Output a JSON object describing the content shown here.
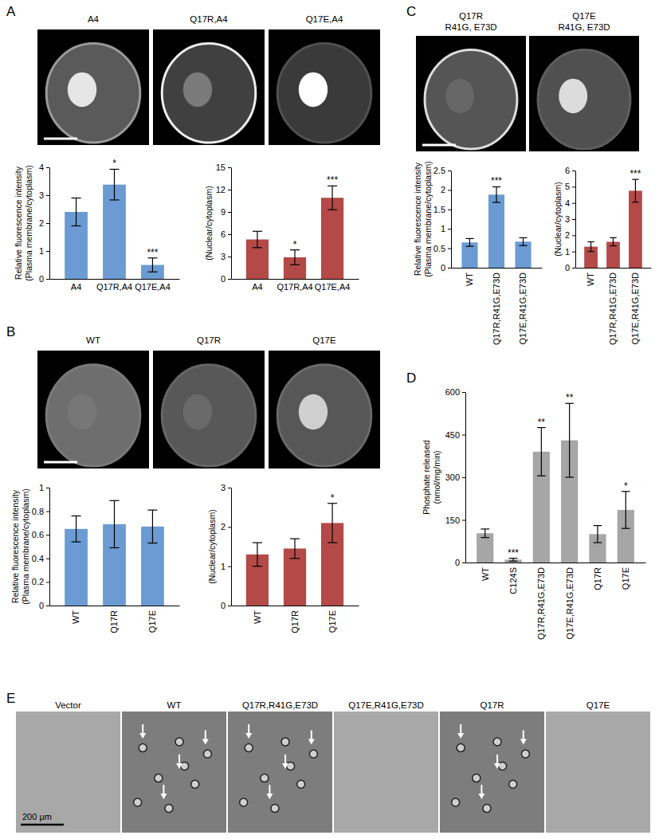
{
  "panels": [
    {
      "label": "A",
      "images": [
        "A4",
        "Q17R,A4",
        "Q17E,A4"
      ]
    },
    {
      "label": "B",
      "images": [
        "WT",
        "Q17R",
        "Q17E"
      ]
    },
    {
      "label": "C",
      "images": [
        [
          "Q17R",
          "R41G, E73D"
        ],
        [
          "Q17E",
          "R41G, E73D"
        ]
      ]
    },
    {
      "label": "D"
    },
    {
      "label": "E",
      "images": [
        "Vector",
        "WT",
        "Q17R,R41G,E73D",
        "Q17E,R41G,E73D",
        "Q17R",
        "Q17E"
      ],
      "scale_bar": "200 μm"
    }
  ],
  "chart_data": [
    {
      "type": "bar",
      "ylabel": [
        "Relative fluorescence intensity",
        "(Plasma membrane/cytoplasm)"
      ],
      "categories": [
        "A4",
        "Q17R,A4",
        "Q17E,A4"
      ],
      "values": [
        2.4,
        3.38,
        0.5
      ],
      "errors": [
        0.5,
        0.55,
        0.25
      ],
      "significance": [
        null,
        "*",
        "***"
      ],
      "color": "#6b9bd2",
      "ylim": [
        0,
        4
      ],
      "yticks": [
        0,
        1,
        2,
        3,
        4
      ]
    },
    {
      "type": "bar",
      "ylabel": [
        "(Nuclear/cytoplasm)"
      ],
      "categories": [
        "A4",
        "Q17R,A4",
        "Q17E,A4"
      ],
      "values": [
        5.3,
        2.9,
        10.9
      ],
      "errors": [
        1.1,
        1.0,
        1.6
      ],
      "significance": [
        null,
        "*",
        "***"
      ],
      "color": "#b34a47",
      "ylim": [
        0,
        15
      ],
      "yticks": [
        0,
        3,
        6,
        9,
        12,
        15
      ]
    },
    {
      "type": "bar",
      "ylabel": [
        "Relative fluorescence intensity",
        "(Plasma membrane/cytoplasm)"
      ],
      "categories": [
        "WT",
        "Q17R",
        "Q17E"
      ],
      "values": [
        0.65,
        0.69,
        0.67
      ],
      "errors": [
        0.11,
        0.2,
        0.14
      ],
      "significance": [
        null,
        null,
        null
      ],
      "color": "#6b9bd2",
      "ylim": [
        0,
        1
      ],
      "yticks": [
        0,
        0.2,
        0.4,
        0.6,
        0.8,
        1
      ]
    },
    {
      "type": "bar",
      "ylabel": [
        "(Nuclear/cytoplasm)"
      ],
      "categories": [
        "WT",
        "Q17R",
        "Q17E"
      ],
      "values": [
        1.3,
        1.45,
        2.1
      ],
      "errors": [
        0.3,
        0.25,
        0.5
      ],
      "significance": [
        null,
        null,
        "*"
      ],
      "color": "#b34a47",
      "ylim": [
        0,
        3
      ],
      "yticks": [
        0,
        1,
        2,
        3
      ]
    },
    {
      "type": "bar",
      "ylabel": [
        "Relative fluorescence intensity",
        "(Plasma membrane/cytoplasm)"
      ],
      "categories": [
        "WT",
        "Q17R,R41G,E73D",
        "Q17E,R41G,E73D"
      ],
      "values": [
        0.65,
        1.88,
        0.67
      ],
      "errors": [
        0.1,
        0.2,
        0.1
      ],
      "significance": [
        null,
        "***",
        null
      ],
      "color": "#6b9bd2",
      "ylim": [
        0,
        2.5
      ],
      "yticks": [
        0,
        0.5,
        1,
        1.5,
        2,
        2.5
      ]
    },
    {
      "type": "bar",
      "ylabel": [
        "(Nuclear/cytoplasm)"
      ],
      "categories": [
        "WT",
        "Q17R,R41G,E73D",
        "Q17E,R41G,E73D"
      ],
      "values": [
        1.3,
        1.6,
        4.75
      ],
      "errors": [
        0.3,
        0.25,
        0.7
      ],
      "significance": [
        null,
        null,
        "***"
      ],
      "color": "#b34a47",
      "ylim": [
        0,
        6
      ],
      "yticks": [
        0,
        1,
        2,
        3,
        4,
        5,
        6
      ]
    },
    {
      "type": "bar",
      "ylabel": [
        "Phosphate released",
        "(nmol/mg/min)"
      ],
      "categories": [
        "WT",
        "C124S",
        "Q17R,R41G,E73D",
        "Q17E,R41G,E73D",
        "Q17R",
        "Q17E"
      ],
      "values": [
        103,
        10,
        390,
        430,
        100,
        185
      ],
      "errors": [
        15,
        5,
        85,
        130,
        30,
        65
      ],
      "significance": [
        null,
        "***",
        "**",
        "**",
        null,
        "*"
      ],
      "color": "#a6a6a6",
      "ylim": [
        0,
        600
      ],
      "yticks": [
        0,
        150,
        300,
        450,
        600
      ]
    }
  ]
}
